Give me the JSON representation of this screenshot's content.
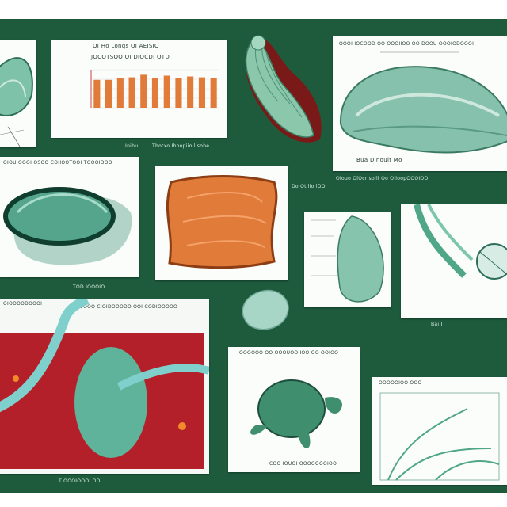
{
  "captions": {
    "chart_title": "OI Ho Lonqs OI AEISIO",
    "chart_subtitle": "JOCOTSOO OI DIOCDI OTD",
    "chart_footer_left": "Inibu",
    "chart_footer_right": "Thotxo Ihoopiio lisobe",
    "top_right_header": "OOOI IOCOOD OO OOOIIOO OO DOOU OOOIODOOOI",
    "top_right_footer": "Bua Dinouit Mo",
    "top_right_sublabel": "Oiouo OlOcrisolli Oo OlioopOOOIOO",
    "mid_left_header": "OIOU OOOI OSOO COIIOOTOOI TOOOIDOO",
    "mid_left_footer": "TOD IOOOIO",
    "small_label": "Do Otilio lDO",
    "bottom_left_header": "OIOOOODOOOI",
    "bottom_left_header2": "OOOOOO CIOIDOOODO OOI CODIOOOOO",
    "bottom_left_footer": "T OOOIOOOI OD",
    "turtle_header": "OOOOOO OO OOOUOOIIOO OO OOIOO",
    "turtle_footer": "COO IOUOI OOOOOOOIOO",
    "bottom_right_header": "OOOOOIOO OOO",
    "right_label": "Bai I"
  },
  "colors": {
    "board_green": "#1e5b3d",
    "teal": "#5fb39a",
    "orange": "#e07b39",
    "red": "#b3202a"
  },
  "chart_data": {
    "type": "bar",
    "title": "OI Ho Lonqs OI AEISIO",
    "categories": [
      "",
      "",
      "",
      "",
      "",
      "",
      "",
      "",
      "",
      "",
      ""
    ],
    "values": [
      33,
      33,
      35,
      36,
      39,
      35,
      38,
      35,
      37,
      36,
      35
    ],
    "ylim": [
      0,
      45
    ],
    "grid": true
  }
}
